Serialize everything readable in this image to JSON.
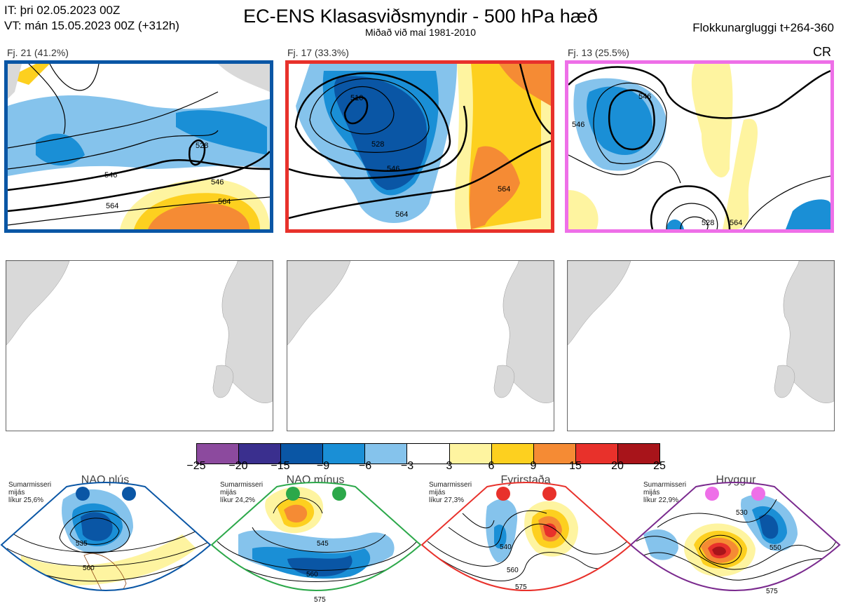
{
  "header": {
    "it_line": "IT: þri 02.05.2023 00Z",
    "vt_line": "VT: mán 15.05.2023 00Z  (+312h)",
    "title": "EC-ENS Klasasviðsmyndir - 500 hPa hæð",
    "subtitle": "Miðað við maí 1981-2010",
    "window": "Flokkunargluggi t+264-360",
    "corner_code": "CR"
  },
  "panels": [
    {
      "label": "Fj. 21 (41.2%)",
      "border_color": "#0a56a5",
      "contours": [
        "546",
        "564",
        "528",
        "546",
        "564"
      ]
    },
    {
      "label": "Fj. 17 (33.3%)",
      "border_color": "#e8312b",
      "contours": [
        "510",
        "528",
        "546",
        "564",
        "564"
      ]
    },
    {
      "label": "Fj. 13 (25.5%)",
      "border_color": "#ee6fe8",
      "contours": [
        "546",
        "546",
        "564",
        "528"
      ]
    }
  ],
  "colorbar": {
    "ticks": [
      "−25",
      "−20",
      "−15",
      "−9",
      "−6",
      "−3",
      "3",
      "6",
      "9",
      "15",
      "20",
      "25"
    ],
    "colors": [
      "#8c4a9e",
      "#3a2f8e",
      "#0a56a5",
      "#1a8fd6",
      "#85c3ec",
      "#ffffff",
      "#fef4a0",
      "#fdd01f",
      "#f58b34",
      "#e8312b",
      "#a8141a"
    ]
  },
  "climatology": [
    {
      "name": "NAO plús",
      "info": [
        "Sumarmisseri",
        "mijás",
        "líkur 25,6%"
      ],
      "color": "#0a56a5",
      "contours": [
        "535",
        "560"
      ]
    },
    {
      "name": "NAO mínus",
      "info": [
        "Sumarmisseri",
        "mijás",
        "líkur 24,2%"
      ],
      "color": "#2ca84a",
      "contours": [
        "545",
        "560",
        "575"
      ]
    },
    {
      "name": "Fyrirstaða",
      "info": [
        "Sumarmisseri",
        "mijás",
        "líkur 27,3%"
      ],
      "color": "#e8312b",
      "contours": [
        "540",
        "560",
        "575"
      ]
    },
    {
      "name": "Hryggur",
      "info": [
        "Sumarmisseri",
        "mijás",
        "líkur 22,9%"
      ],
      "color": "#7a2a8e",
      "contours": [
        "530",
        "550",
        "575"
      ]
    }
  ]
}
